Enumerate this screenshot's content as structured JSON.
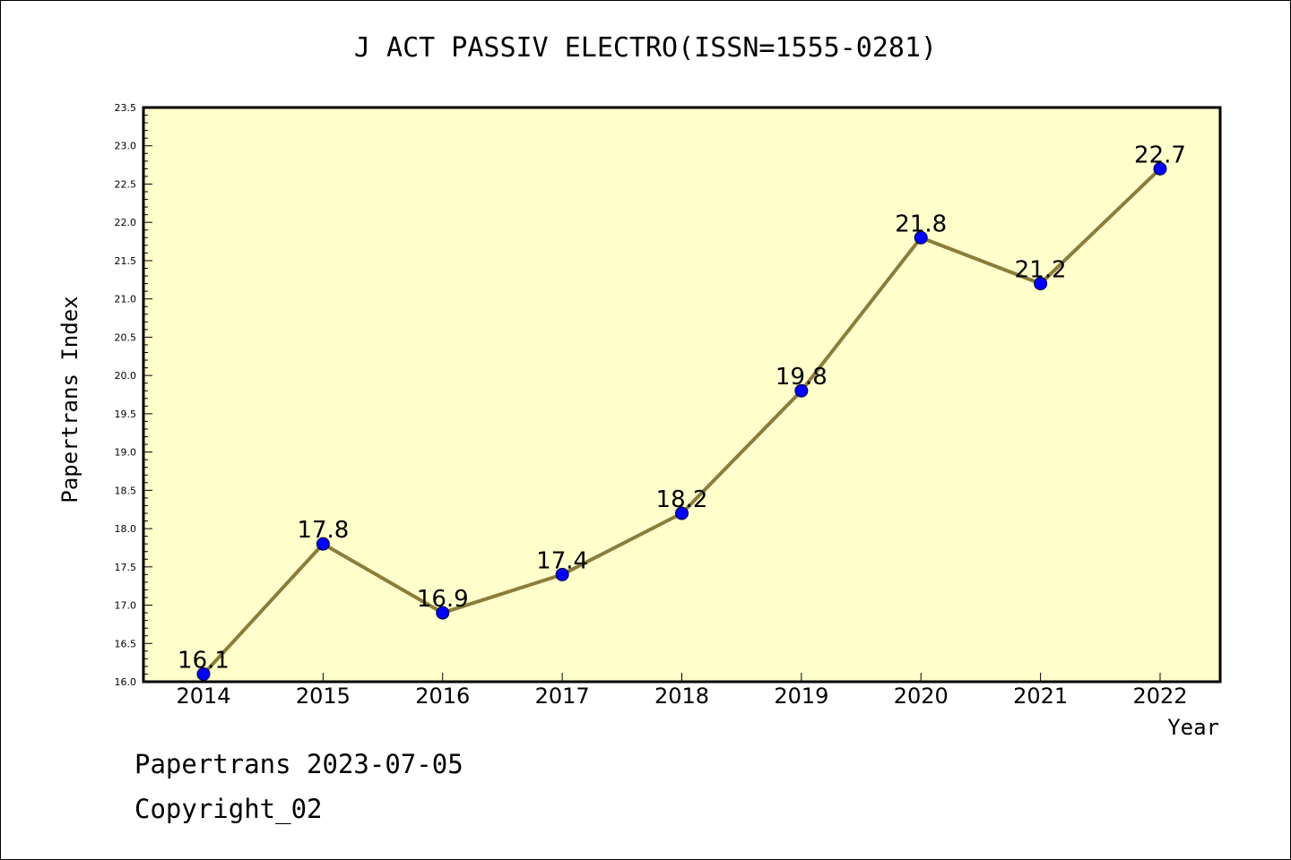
{
  "chart_data": {
    "type": "line",
    "title": "J ACT PASSIV ELECTRO(ISSN=1555-0281)",
    "xlabel": "Year",
    "ylabel": "Papertrans Index",
    "categories": [
      "2014",
      "2015",
      "2016",
      "2017",
      "2018",
      "2019",
      "2020",
      "2021",
      "2022"
    ],
    "values": [
      16.1,
      17.8,
      16.9,
      17.4,
      18.2,
      19.8,
      21.8,
      21.2,
      22.7
    ],
    "data_labels": [
      "16.1",
      "17.8",
      "16.9",
      "17.4",
      "18.2",
      "19.8",
      "21.8",
      "21.2",
      "22.7"
    ],
    "ylim": [
      16.0,
      23.5
    ],
    "y_ticks": [
      "16.0",
      "16.5",
      "17.0",
      "17.5",
      "18.0",
      "18.5",
      "19.0",
      "19.5",
      "20.0",
      "20.5",
      "21.0",
      "21.5",
      "22.0",
      "22.5",
      "23.0",
      "23.5"
    ],
    "grid": false,
    "colors": {
      "plot_background": "#ffffcc",
      "line": "#8b7d3a",
      "marker": "#0000ff"
    }
  },
  "footer": {
    "line1": "Papertrans 2023-07-05",
    "line2": "Copyright_02"
  }
}
